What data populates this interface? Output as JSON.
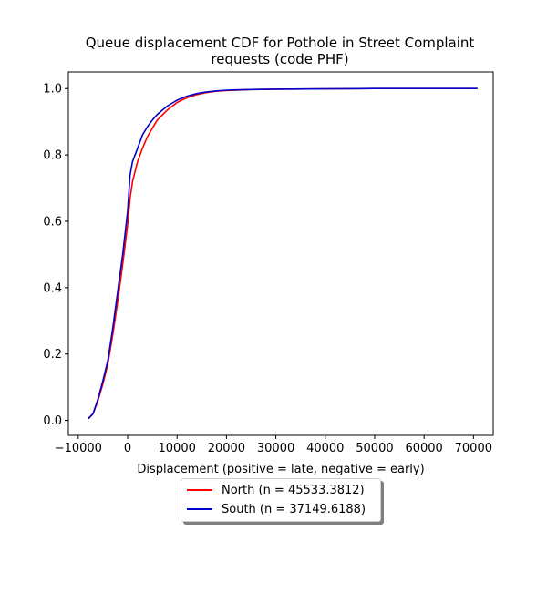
{
  "chart_data": {
    "type": "line",
    "title": "Queue displacement CDF for Pothole in Street Complaint requests (code PHF)",
    "title_lines": [
      "Queue displacement CDF for Pothole in Street Complaint",
      "requests (code PHF)"
    ],
    "xlabel": "Displacement (positive = late, negative = early)",
    "ylabel": "",
    "xlim": [
      -12000,
      74000
    ],
    "ylim": [
      -0.045,
      1.05
    ],
    "xticks": [
      -10000,
      0,
      10000,
      20000,
      30000,
      40000,
      50000,
      60000,
      70000
    ],
    "xtick_labels": [
      "−10000",
      "0",
      "10000",
      "20000",
      "30000",
      "40000",
      "50000",
      "60000",
      "70000"
    ],
    "yticks": [
      0.0,
      0.2,
      0.4,
      0.6,
      0.8,
      1.0
    ],
    "ytick_labels": [
      "0.0",
      "0.2",
      "0.4",
      "0.6",
      "0.8",
      "1.0"
    ],
    "grid": false,
    "legend_placement": "below-center",
    "series": [
      {
        "name": "North (n = 45533.3812)",
        "color": "#ff0000",
        "x": [
          -8000,
          -7000,
          -6000,
          -5000,
          -4000,
          -3000,
          -2000,
          -1000,
          0,
          500,
          1000,
          2000,
          3000,
          4000,
          5000,
          6000,
          8000,
          10000,
          12000,
          14000,
          16000,
          18000,
          20000,
          25000,
          30000,
          40000,
          50000,
          60000,
          70800
        ],
        "y": [
          0.005,
          0.02,
          0.06,
          0.11,
          0.17,
          0.26,
          0.36,
          0.47,
          0.59,
          0.67,
          0.72,
          0.78,
          0.82,
          0.855,
          0.88,
          0.905,
          0.935,
          0.958,
          0.972,
          0.982,
          0.988,
          0.992,
          0.994,
          0.997,
          0.998,
          0.999,
          1.0,
          1.0,
          1.0
        ]
      },
      {
        "name": "South (n = 37149.6188)",
        "color": "#0000cc",
        "x": [
          -8000,
          -7000,
          -6000,
          -5000,
          -4000,
          -3000,
          -2000,
          -1000,
          0,
          500,
          1000,
          2000,
          3000,
          4000,
          5000,
          6000,
          8000,
          10000,
          12000,
          14000,
          16000,
          18000,
          20000,
          25000,
          30000,
          40000,
          50000,
          60000,
          70800
        ],
        "y": [
          0.005,
          0.02,
          0.065,
          0.12,
          0.18,
          0.28,
          0.39,
          0.5,
          0.63,
          0.74,
          0.78,
          0.82,
          0.86,
          0.885,
          0.905,
          0.922,
          0.947,
          0.965,
          0.977,
          0.985,
          0.99,
          0.993,
          0.995,
          0.997,
          0.998,
          0.999,
          1.0,
          1.0,
          1.0
        ]
      }
    ]
  }
}
